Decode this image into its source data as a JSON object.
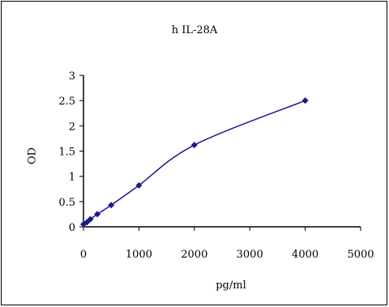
{
  "chart_data": {
    "type": "line",
    "title": "h IL-28A",
    "xlabel": "pg/ml",
    "ylabel": "OD",
    "xlim": [
      0,
      5000
    ],
    "ylim": [
      0,
      3
    ],
    "xticks": [
      "0",
      "1000",
      "2000",
      "3000",
      "4000",
      "5000"
    ],
    "yticks": [
      "0",
      "0.5",
      "1",
      "1.5",
      "2",
      "2.5",
      "3"
    ],
    "series": [
      {
        "color": "#1a1a8c",
        "x": [
          0,
          62.5,
          125,
          250,
          500,
          1000,
          2000,
          4000
        ],
        "y": [
          0.05,
          0.09,
          0.15,
          0.25,
          0.43,
          0.82,
          1.62,
          2.5
        ]
      }
    ],
    "grid": false,
    "legend": "none"
  }
}
